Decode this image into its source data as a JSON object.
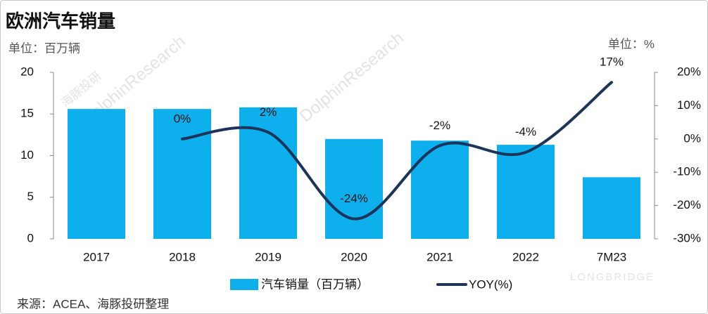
{
  "chart_data": {
    "type": "bar_line",
    "title": "欧洲汽车销量",
    "y_unit": "单位：百万辆",
    "y2_unit": "单位：%",
    "source": "来源：ACEA、海豚投研整理",
    "watermarks": [
      "海豚投研",
      "DolphinResearch",
      "LONGBRIDGE"
    ],
    "categories": [
      "2017",
      "2018",
      "2019",
      "2020",
      "2021",
      "2022",
      "7M23"
    ],
    "series": [
      {
        "name": "汽车销量（百万辆）",
        "type": "bar",
        "color": "#0db0ec",
        "values": [
          15.6,
          15.6,
          15.8,
          12.0,
          11.8,
          11.3,
          7.4
        ]
      },
      {
        "name": "YOY(%)",
        "type": "line",
        "axis": "y2",
        "color": "#1c3459",
        "values": [
          null,
          0,
          2,
          -24,
          -2,
          -4,
          17
        ],
        "value_labels": [
          null,
          "0%",
          "2%",
          "-24%",
          "-2%",
          "-4%",
          "17%"
        ]
      }
    ],
    "ylim": [
      0,
      20
    ],
    "yticks": [
      0,
      5,
      10,
      15,
      20
    ],
    "y2lim": [
      -30,
      20
    ],
    "y2ticks": [
      {
        "value": 20,
        "label": "20%"
      },
      {
        "value": 10,
        "label": "10%"
      },
      {
        "value": 0,
        "label": "0%"
      },
      {
        "value": -10,
        "label": "-10%"
      },
      {
        "value": -20,
        "label": "-20%"
      },
      {
        "value": -30,
        "label": "-30%"
      }
    ]
  }
}
